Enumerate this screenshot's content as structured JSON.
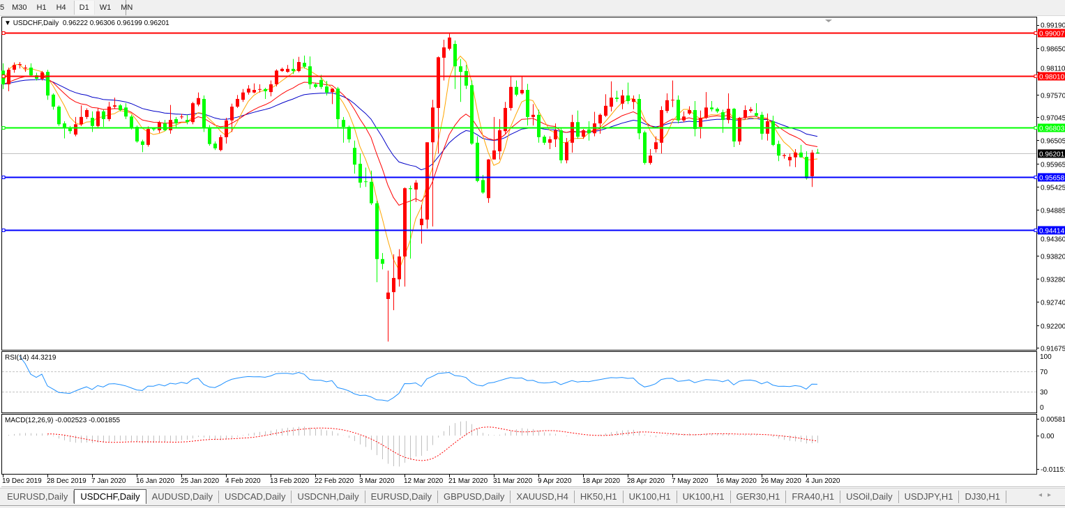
{
  "toolbar": {
    "timeframes": [
      {
        "label": "5",
        "active": false
      },
      {
        "label": "M30",
        "active": false
      },
      {
        "label": "H1",
        "active": false
      },
      {
        "label": "H4",
        "active": false
      },
      {
        "label": "D1",
        "active": true
      },
      {
        "label": "W1",
        "active": false
      },
      {
        "label": "MN",
        "active": false
      }
    ]
  },
  "header": {
    "symbol": "USDCHF,Daily",
    "ohlc": "0.96222 0.96306 0.96199 0.96201",
    "menu_icon": "triangle-down-icon"
  },
  "colors": {
    "bull_candle": "#ff0000",
    "bear_candle": "#00ff00",
    "ma_fast": "#ffa500",
    "ma_mid": "#ff0000",
    "ma_slow": "#0000c8",
    "rsi_line": "#1e90ff",
    "macd_hist": "#c0c0c0",
    "macd_signal": "#ff0000",
    "current_price": "#c0c0c0"
  },
  "chart": {
    "ylim": [
      0.91675,
      0.9919
    ],
    "price_ticks": [
      "0.99190",
      "0.98650",
      "0.98110",
      "0.97570",
      "0.97045",
      "0.96505",
      "0.95965",
      "0.95425",
      "0.94885",
      "0.94360",
      "0.93820",
      "0.93280",
      "0.92740",
      "0.92200",
      "0.91675"
    ],
    "levels": [
      {
        "price": 0.99007,
        "label": "0.99007",
        "color": "#ff0000"
      },
      {
        "price": 0.9801,
        "label": "0.98010",
        "color": "#ff0000"
      },
      {
        "price": 0.96803,
        "label": "0.96803",
        "color": "#00ff00"
      },
      {
        "price": 0.95658,
        "label": "0.95658",
        "color": "#0000ff"
      },
      {
        "price": 0.94414,
        "label": "0.94414",
        "color": "#0000ff"
      }
    ],
    "current_price": {
      "price": 0.96201,
      "label": "0.96201"
    },
    "date_labels": [
      {
        "text": "19 Dec 2019",
        "bar": 0
      },
      {
        "text": "28 Dec 2019",
        "bar": 8
      },
      {
        "text": "7 Jan 2020",
        "bar": 16
      },
      {
        "text": "16 Jan 2020",
        "bar": 24
      },
      {
        "text": "25 Jan 2020",
        "bar": 32
      },
      {
        "text": "4 Feb 2020",
        "bar": 40
      },
      {
        "text": "13 Feb 2020",
        "bar": 48
      },
      {
        "text": "22 Feb 2020",
        "bar": 56
      },
      {
        "text": "3 Mar 2020",
        "bar": 64
      },
      {
        "text": "12 Mar 2020",
        "bar": 72
      },
      {
        "text": "21 Mar 2020",
        "bar": 80
      },
      {
        "text": "31 Mar 2020",
        "bar": 88
      },
      {
        "text": "9 Apr 2020",
        "bar": 96
      },
      {
        "text": "18 Apr 2020",
        "bar": 104
      },
      {
        "text": "28 Apr 2020",
        "bar": 112
      },
      {
        "text": "7 May 2020",
        "bar": 120
      },
      {
        "text": "16 May 2020",
        "bar": 128
      },
      {
        "text": "26 May 2020",
        "bar": 136
      },
      {
        "text": "4 Jun 2020",
        "bar": 144
      }
    ]
  },
  "chart_data": {
    "type": "candlestick",
    "symbol": "USDCHF,Daily",
    "ohlc_fields": [
      "open",
      "high",
      "low",
      "close"
    ],
    "candles": [
      [
        0.9813,
        0.983,
        0.977,
        0.9781
      ],
      [
        0.9781,
        0.982,
        0.9765,
        0.9815
      ],
      [
        0.9815,
        0.9832,
        0.9808,
        0.9826
      ],
      [
        0.9826,
        0.9833,
        0.9818,
        0.9828
      ],
      [
        0.9818,
        0.9826,
        0.981,
        0.982
      ],
      [
        0.982,
        0.983,
        0.9798,
        0.9802
      ],
      [
        0.9802,
        0.9808,
        0.979,
        0.9794
      ],
      [
        0.9794,
        0.9812,
        0.979,
        0.9809
      ],
      [
        0.981,
        0.9815,
        0.9745,
        0.9755
      ],
      [
        0.9757,
        0.976,
        0.9722,
        0.9729
      ],
      [
        0.9729,
        0.9732,
        0.9684,
        0.9688
      ],
      [
        0.969,
        0.9695,
        0.9655,
        0.968
      ],
      [
        0.968,
        0.9684,
        0.9666,
        0.9672
      ],
      [
        0.9664,
        0.9705,
        0.966,
        0.9688
      ],
      [
        0.9688,
        0.9732,
        0.9684,
        0.9705
      ],
      [
        0.9705,
        0.9725,
        0.97,
        0.9721
      ],
      [
        0.9703,
        0.9718,
        0.967,
        0.9684
      ],
      [
        0.9684,
        0.9725,
        0.9678,
        0.9718
      ],
      [
        0.9718,
        0.9722,
        0.9682,
        0.97
      ],
      [
        0.97,
        0.974,
        0.9695,
        0.9729
      ],
      [
        0.9729,
        0.975,
        0.9724,
        0.9732
      ],
      [
        0.9732,
        0.9735,
        0.9718,
        0.9721
      ],
      [
        0.9727,
        0.9737,
        0.97,
        0.9706
      ],
      [
        0.9706,
        0.971,
        0.9676,
        0.968
      ],
      [
        0.9682,
        0.9685,
        0.9645,
        0.9648
      ],
      [
        0.9648,
        0.9652,
        0.9623,
        0.964
      ],
      [
        0.964,
        0.9683,
        0.9636,
        0.9677
      ],
      [
        0.9679,
        0.9681,
        0.9672,
        0.9676
      ],
      [
        0.9674,
        0.9696,
        0.9668,
        0.9692
      ],
      [
        0.969,
        0.9698,
        0.9672,
        0.9674
      ],
      [
        0.9674,
        0.9733,
        0.9666,
        0.9698
      ],
      [
        0.97,
        0.9705,
        0.968,
        0.969
      ],
      [
        0.9705,
        0.9712,
        0.97,
        0.9706
      ],
      [
        0.9698,
        0.971,
        0.9688,
        0.9693
      ],
      [
        0.9693,
        0.974,
        0.9688,
        0.9737
      ],
      [
        0.9734,
        0.9762,
        0.973,
        0.9749
      ],
      [
        0.9747,
        0.9755,
        0.967,
        0.968
      ],
      [
        0.968,
        0.9686,
        0.9638,
        0.9642
      ],
      [
        0.9643,
        0.9648,
        0.9628,
        0.9632
      ],
      [
        0.9628,
        0.9663,
        0.9625,
        0.9658
      ],
      [
        0.9658,
        0.9703,
        0.9643,
        0.9697
      ],
      [
        0.9697,
        0.9736,
        0.967,
        0.9729
      ],
      [
        0.9729,
        0.9756,
        0.9726,
        0.9747
      ],
      [
        0.9745,
        0.977,
        0.974,
        0.9762
      ],
      [
        0.9762,
        0.9779,
        0.9757,
        0.9771
      ],
      [
        0.9762,
        0.9783,
        0.976,
        0.9768
      ],
      [
        0.9769,
        0.9781,
        0.9762,
        0.977
      ],
      [
        0.977,
        0.9773,
        0.9747,
        0.9765
      ],
      [
        0.9763,
        0.979,
        0.9753,
        0.9781
      ],
      [
        0.9781,
        0.9816,
        0.9776,
        0.9813
      ],
      [
        0.9812,
        0.982,
        0.981,
        0.9817
      ],
      [
        0.981,
        0.9826,
        0.9808,
        0.9817
      ],
      [
        0.9817,
        0.984,
        0.9805,
        0.9812
      ],
      [
        0.9812,
        0.9845,
        0.9809,
        0.9833
      ],
      [
        0.9831,
        0.9848,
        0.9818,
        0.9822
      ],
      [
        0.9823,
        0.9846,
        0.977,
        0.9781
      ],
      [
        0.9781,
        0.9785,
        0.9772,
        0.9775
      ],
      [
        0.9791,
        0.9803,
        0.977,
        0.9775
      ],
      [
        0.9776,
        0.9789,
        0.9755,
        0.9762
      ],
      [
        0.9763,
        0.9772,
        0.9735,
        0.9771
      ],
      [
        0.9771,
        0.9775,
        0.968,
        0.97
      ],
      [
        0.9698,
        0.9705,
        0.9645,
        0.9682
      ],
      [
        0.9682,
        0.9685,
        0.9645,
        0.9653
      ],
      [
        0.9633,
        0.965,
        0.9573,
        0.9594
      ],
      [
        0.9596,
        0.962,
        0.954,
        0.9552
      ],
      [
        0.9555,
        0.9587,
        0.9542,
        0.9554
      ],
      [
        0.9554,
        0.958,
        0.95,
        0.9504
      ],
      [
        0.9504,
        0.951,
        0.932,
        0.9374
      ],
      [
        0.9374,
        0.9388,
        0.935,
        0.9363
      ],
      [
        0.9281,
        0.9347,
        0.9182,
        0.9296
      ],
      [
        0.9297,
        0.9385,
        0.9255,
        0.933
      ],
      [
        0.9327,
        0.9397,
        0.931,
        0.938
      ],
      [
        0.938,
        0.9541,
        0.931,
        0.9539
      ],
      [
        0.9539,
        0.9545,
        0.9375,
        0.9537
      ],
      [
        0.9536,
        0.9558,
        0.9507,
        0.9552
      ],
      [
        0.9453,
        0.95,
        0.941,
        0.9468
      ],
      [
        0.9466,
        0.9646,
        0.9445,
        0.9646
      ],
      [
        0.9646,
        0.9745,
        0.945,
        0.9727
      ],
      [
        0.9726,
        0.9846,
        0.962,
        0.9844
      ],
      [
        0.9843,
        0.9885,
        0.979,
        0.9867
      ],
      [
        0.9864,
        0.9902,
        0.986,
        0.989
      ],
      [
        0.9875,
        0.9883,
        0.977,
        0.9823
      ],
      [
        0.9823,
        0.984,
        0.974,
        0.981
      ],
      [
        0.9812,
        0.9826,
        0.977,
        0.9778
      ],
      [
        0.9779,
        0.979,
        0.964,
        0.9643
      ],
      [
        0.9645,
        0.966,
        0.9553,
        0.9556
      ],
      [
        0.9558,
        0.957,
        0.9526,
        0.9529
      ],
      [
        0.9516,
        0.9607,
        0.9505,
        0.9606
      ],
      [
        0.9606,
        0.9705,
        0.9606,
        0.9627
      ],
      [
        0.9625,
        0.97,
        0.9606,
        0.9674
      ],
      [
        0.9672,
        0.974,
        0.9666,
        0.9726
      ],
      [
        0.9726,
        0.98,
        0.972,
        0.9775
      ],
      [
        0.9775,
        0.979,
        0.9753,
        0.9757
      ],
      [
        0.976,
        0.98,
        0.9757,
        0.9768
      ],
      [
        0.9768,
        0.9782,
        0.9685,
        0.9705
      ],
      [
        0.9705,
        0.9735,
        0.9685,
        0.971
      ],
      [
        0.971,
        0.9722,
        0.9645,
        0.9658
      ],
      [
        0.9659,
        0.9663,
        0.964,
        0.9645
      ],
      [
        0.9645,
        0.966,
        0.963,
        0.9653
      ],
      [
        0.9653,
        0.969,
        0.9635,
        0.9674
      ],
      [
        0.9674,
        0.9679,
        0.9597,
        0.9604
      ],
      [
        0.9604,
        0.9656,
        0.9597,
        0.9646
      ],
      [
        0.9645,
        0.971,
        0.9622,
        0.9693
      ],
      [
        0.9693,
        0.972,
        0.9654,
        0.9659
      ],
      [
        0.9659,
        0.9677,
        0.9654,
        0.9674
      ],
      [
        0.9676,
        0.9695,
        0.965,
        0.9667
      ],
      [
        0.9667,
        0.9717,
        0.966,
        0.969
      ],
      [
        0.969,
        0.9713,
        0.9666,
        0.971
      ],
      [
        0.9708,
        0.9758,
        0.9705,
        0.9731
      ],
      [
        0.9729,
        0.9788,
        0.9718,
        0.975
      ],
      [
        0.975,
        0.9766,
        0.974,
        0.9747
      ],
      [
        0.9736,
        0.9768,
        0.9723,
        0.9755
      ],
      [
        0.9755,
        0.9785,
        0.9735,
        0.9742
      ],
      [
        0.974,
        0.9755,
        0.9723,
        0.9747
      ],
      [
        0.9747,
        0.9758,
        0.9653,
        0.9667
      ],
      [
        0.9669,
        0.9673,
        0.9594,
        0.9598
      ],
      [
        0.9598,
        0.963,
        0.9594,
        0.9615
      ],
      [
        0.963,
        0.966,
        0.9622,
        0.9646
      ],
      [
        0.9645,
        0.973,
        0.962,
        0.9721
      ],
      [
        0.9719,
        0.976,
        0.9714,
        0.9744
      ],
      [
        0.9744,
        0.979,
        0.9728,
        0.9745
      ],
      [
        0.9745,
        0.9755,
        0.969,
        0.9697
      ],
      [
        0.9697,
        0.9718,
        0.9693,
        0.9706
      ],
      [
        0.9713,
        0.973,
        0.971,
        0.9721
      ],
      [
        0.9721,
        0.9742,
        0.966,
        0.9677
      ],
      [
        0.9682,
        0.972,
        0.9655,
        0.9703
      ],
      [
        0.9703,
        0.9763,
        0.97,
        0.9727
      ],
      [
        0.9727,
        0.9742,
        0.9718,
        0.9723
      ],
      [
        0.9724,
        0.9727,
        0.9714,
        0.9718
      ],
      [
        0.9716,
        0.9722,
        0.9668,
        0.9698
      ],
      [
        0.9698,
        0.976,
        0.969,
        0.9724
      ],
      [
        0.9724,
        0.9726,
        0.9635,
        0.9648
      ],
      [
        0.9648,
        0.9705,
        0.964,
        0.9703
      ],
      [
        0.9703,
        0.9732,
        0.9699,
        0.9721
      ],
      [
        0.9719,
        0.9728,
        0.9715,
        0.9723
      ],
      [
        0.9714,
        0.9737,
        0.9705,
        0.9708
      ],
      [
        0.971,
        0.9717,
        0.9652,
        0.9666
      ],
      [
        0.9666,
        0.9713,
        0.965,
        0.9695
      ],
      [
        0.9695,
        0.9708,
        0.9637,
        0.964
      ],
      [
        0.9642,
        0.965,
        0.9602,
        0.9615
      ],
      [
        0.9614,
        0.962,
        0.9608,
        0.9616
      ],
      [
        0.9604,
        0.962,
        0.959,
        0.9612
      ],
      [
        0.9611,
        0.963,
        0.9588,
        0.9622
      ],
      [
        0.9622,
        0.964,
        0.961,
        0.9611
      ],
      [
        0.9612,
        0.9625,
        0.9559,
        0.9562
      ],
      [
        0.9567,
        0.9628,
        0.9542,
        0.9622
      ],
      [
        0.96222,
        0.96306,
        0.96199,
        0.96201
      ]
    ]
  },
  "rsi": {
    "label": "RSI(14) 44.3219",
    "levels": [
      "100",
      "70",
      "30",
      "0"
    ]
  },
  "macd": {
    "label": "MACD(12,26,9) -0.002523 -0.001855",
    "ticks": [
      {
        "value": 0.005818,
        "label": "0.005818"
      },
      {
        "value": 0,
        "label": "0.00"
      },
      {
        "value": -0.01151,
        "label": "-0.01151"
      }
    ]
  },
  "tabs": [
    {
      "label": "EURUSD,Daily",
      "active": false
    },
    {
      "label": "USDCHF,Daily",
      "active": true
    },
    {
      "label": "AUDUSD,Daily",
      "active": false
    },
    {
      "label": "USDCAD,Daily",
      "active": false
    },
    {
      "label": "USDCNH,Daily",
      "active": false
    },
    {
      "label": "EURUSD,Daily",
      "active": false
    },
    {
      "label": "GBPUSD,Daily",
      "active": false
    },
    {
      "label": "XAUUSD,H4",
      "active": false
    },
    {
      "label": "HK50,H1",
      "active": false
    },
    {
      "label": "UK100,H1",
      "active": false
    },
    {
      "label": "UK100,H1",
      "active": false
    },
    {
      "label": "GER30,H1",
      "active": false
    },
    {
      "label": "FRA40,H1",
      "active": false
    },
    {
      "label": "USOil,Daily",
      "active": false
    },
    {
      "label": "USDJPY,H1",
      "active": false
    },
    {
      "label": "DJ30,H1",
      "active": false
    }
  ],
  "tab_scroll": {
    "left": "◂",
    "right": "▸"
  }
}
